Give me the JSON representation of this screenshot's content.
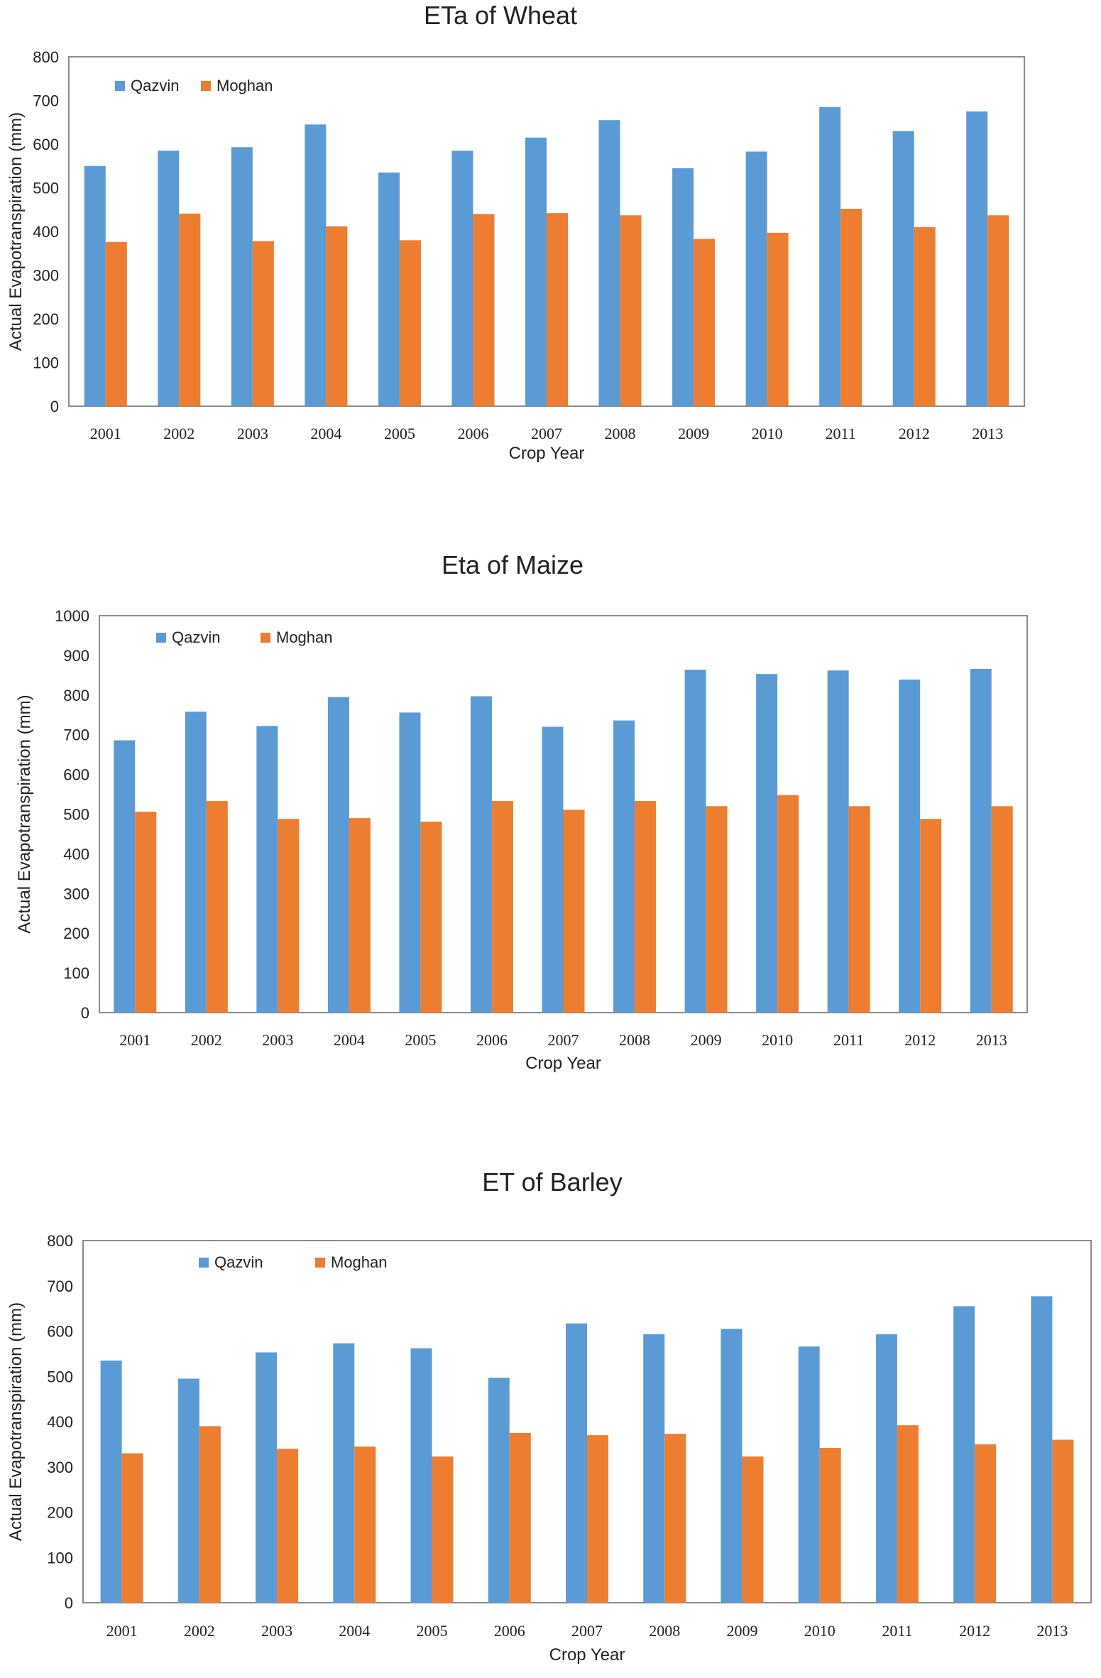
{
  "colors": {
    "qazvin": "#5b9bd5",
    "moghan": "#ed7d31",
    "frame": "#8c8c8c"
  },
  "chart_data": [
    {
      "type": "bar",
      "title": "ETa of Wheat",
      "xlabel": "Crop Year",
      "ylabel": "Actual Evapotranspiration (mm)",
      "ylim": [
        0,
        800
      ],
      "yticks": [
        "0",
        "100",
        "200",
        "300",
        "400",
        "500",
        "600",
        "700",
        "800"
      ],
      "legend_position": "top-left",
      "categories": [
        "2001",
        "2002",
        "2003",
        "2004",
        "2005",
        "2006",
        "2007",
        "2008",
        "2009",
        "2010",
        "2011",
        "2012",
        "2013"
      ],
      "series": [
        {
          "name": "Qazvin",
          "values": [
            550,
            585,
            593,
            645,
            535,
            585,
            615,
            655,
            545,
            583,
            685,
            630,
            675
          ]
        },
        {
          "name": "Moghan",
          "values": [
            376,
            441,
            378,
            412,
            380,
            440,
            442,
            437,
            383,
            397,
            452,
            410,
            437
          ]
        }
      ]
    },
    {
      "type": "bar",
      "title": "Eta of Maize",
      "xlabel": "Crop Year",
      "ylabel": "Actual Evapotranspiration (mm)",
      "ylim": [
        0,
        1000
      ],
      "yticks": [
        "0",
        "100",
        "200",
        "300",
        "400",
        "500",
        "600",
        "700",
        "800",
        "900",
        "1000"
      ],
      "legend_position": "top-left",
      "categories": [
        "2001",
        "2002",
        "2003",
        "2004",
        "2005",
        "2006",
        "2007",
        "2008",
        "2009",
        "2010",
        "2011",
        "2012",
        "2013"
      ],
      "series": [
        {
          "name": "Qazvin",
          "values": [
            686,
            758,
            722,
            795,
            756,
            797,
            720,
            736,
            864,
            853,
            862,
            839,
            866
          ]
        },
        {
          "name": "Moghan",
          "values": [
            506,
            533,
            488,
            490,
            481,
            533,
            511,
            533,
            520,
            548,
            520,
            488,
            520
          ]
        }
      ]
    },
    {
      "type": "bar",
      "title": "ET of Barley",
      "xlabel": "Crop Year",
      "ylabel": "Actual Evapotranspiration (mm)",
      "ylim": [
        0,
        800
      ],
      "yticks": [
        "0",
        "100",
        "200",
        "300",
        "400",
        "500",
        "600",
        "700",
        "800"
      ],
      "legend_position": "top-left",
      "categories": [
        "2001",
        "2002",
        "2003",
        "2004",
        "2005",
        "2006",
        "2007",
        "2008",
        "2009",
        "2010",
        "2011",
        "2012",
        "2013"
      ],
      "series": [
        {
          "name": "Qazvin",
          "values": [
            535,
            495,
            553,
            573,
            562,
            497,
            617,
            593,
            605,
            566,
            593,
            655,
            677
          ]
        },
        {
          "name": "Moghan",
          "values": [
            330,
            390,
            340,
            345,
            323,
            375,
            370,
            373,
            323,
            342,
            392,
            350,
            360
          ]
        }
      ]
    }
  ]
}
